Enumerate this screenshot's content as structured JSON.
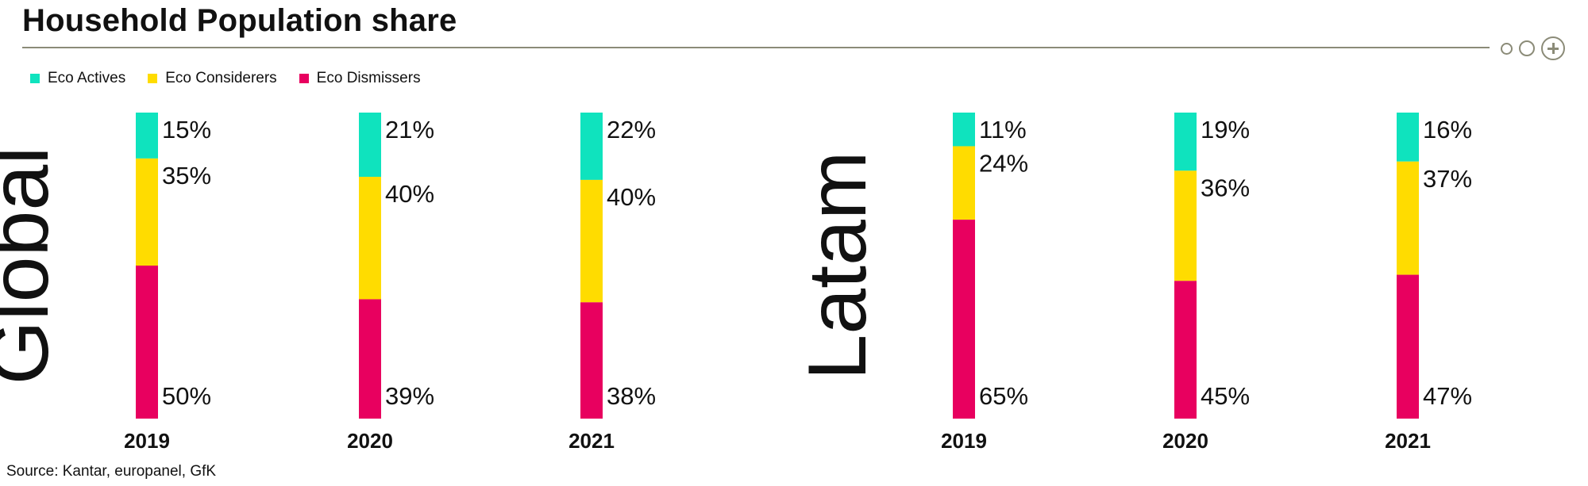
{
  "title": "Household Population share",
  "legend": {
    "items": [
      {
        "label": "Eco Actives",
        "color": "#0fe3be"
      },
      {
        "label": "Eco Considerers",
        "color": "#ffdc00"
      },
      {
        "label": "Eco Dismissers",
        "color": "#e8005f"
      }
    ]
  },
  "source": "Source: Kantar, europanel, GfK",
  "chart_data": {
    "type": "bar",
    "stacked": true,
    "panels": [
      {
        "label": "Global",
        "categories": [
          "2019",
          "2020",
          "2021"
        ],
        "series": [
          {
            "name": "Eco Actives",
            "values": [
              15,
              21,
              22
            ]
          },
          {
            "name": "Eco Considerers",
            "values": [
              35,
              40,
              40
            ]
          },
          {
            "name": "Eco Dismissers",
            "values": [
              50,
              39,
              38
            ]
          }
        ],
        "labels": [
          [
            "15%",
            "35%",
            "50%"
          ],
          [
            "21%",
            "40%",
            "39%"
          ],
          [
            "22%",
            "40%",
            "38%"
          ]
        ]
      },
      {
        "label": "Latam",
        "categories": [
          "2019",
          "2020",
          "2021"
        ],
        "series": [
          {
            "name": "Eco Actives",
            "values": [
              11,
              19,
              16
            ]
          },
          {
            "name": "Eco Considerers",
            "values": [
              24,
              36,
              37
            ]
          },
          {
            "name": "Eco Dismissers",
            "values": [
              65,
              45,
              47
            ]
          }
        ],
        "labels": [
          [
            "11%",
            "24%",
            "65%"
          ],
          [
            "19%",
            "36%",
            "45%"
          ],
          [
            "16%",
            "37%",
            "47%"
          ]
        ]
      }
    ],
    "colors": [
      "#0fe3be",
      "#ffdc00",
      "#e8005f"
    ],
    "ylim": [
      0,
      100
    ],
    "grid": false,
    "legend_position": "top-left"
  }
}
